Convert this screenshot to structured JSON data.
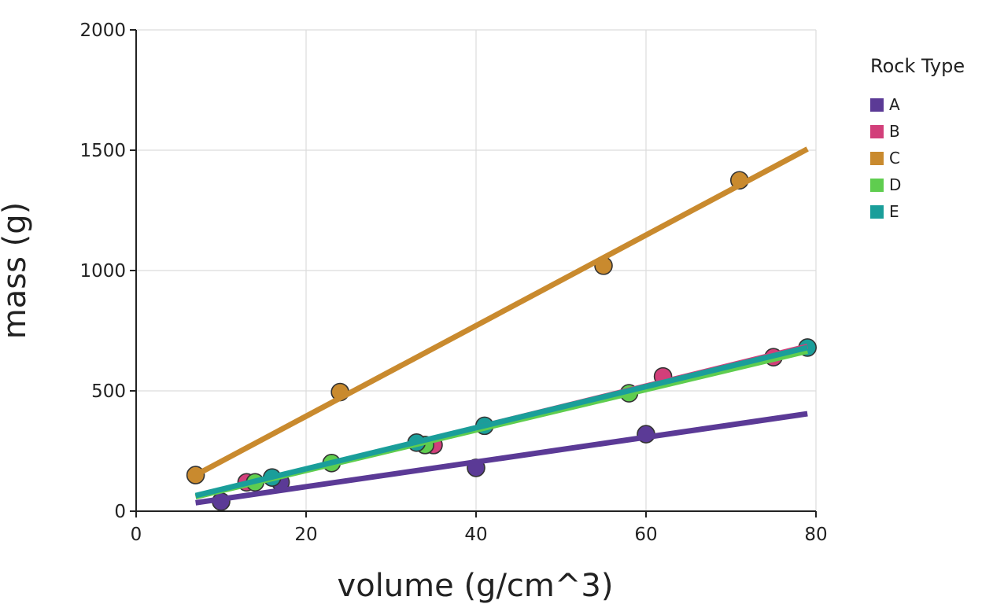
{
  "chart_data": {
    "type": "scatter",
    "title": "",
    "xlabel": "volume (g/cm^3)",
    "ylabel": "mass (g)",
    "xlim": [
      0,
      80
    ],
    "ylim": [
      0,
      2000
    ],
    "x_ticks": [
      0,
      20,
      40,
      60,
      80
    ],
    "y_ticks": [
      0,
      500,
      1000,
      1500,
      2000
    ],
    "grid": true,
    "legend": {
      "title": "Rock Type",
      "placement": "right"
    },
    "series": [
      {
        "name": "A",
        "color": "#5b3a96",
        "points": [
          [
            10,
            40
          ],
          [
            17,
            120
          ],
          [
            40,
            180
          ],
          [
            60,
            320
          ]
        ],
        "fit": [
          [
            7,
            35
          ],
          [
            79,
            405
          ]
        ]
      },
      {
        "name": "B",
        "color": "#d23f7a",
        "points": [
          [
            13,
            120
          ],
          [
            35,
            275
          ],
          [
            62,
            560
          ],
          [
            75,
            640
          ]
        ],
        "fit": [
          [
            7,
            60
          ],
          [
            79,
            685
          ]
        ]
      },
      {
        "name": "C",
        "color": "#c98a2e",
        "points": [
          [
            7,
            150
          ],
          [
            24,
            495
          ],
          [
            55,
            1020
          ],
          [
            71,
            1375
          ]
        ],
        "fit": [
          [
            7,
            150
          ],
          [
            79,
            1505
          ]
        ]
      },
      {
        "name": "D",
        "color": "#5fcd4f",
        "points": [
          [
            14,
            120
          ],
          [
            23,
            200
          ],
          [
            34,
            275
          ],
          [
            58,
            490
          ]
        ],
        "fit": [
          [
            7,
            60
          ],
          [
            79,
            665
          ]
        ]
      },
      {
        "name": "E",
        "color": "#1a9e9a",
        "points": [
          [
            16,
            140
          ],
          [
            33,
            285
          ],
          [
            41,
            355
          ],
          [
            79,
            680
          ]
        ],
        "fit": [
          [
            7,
            65
          ],
          [
            79,
            680
          ]
        ]
      }
    ]
  }
}
